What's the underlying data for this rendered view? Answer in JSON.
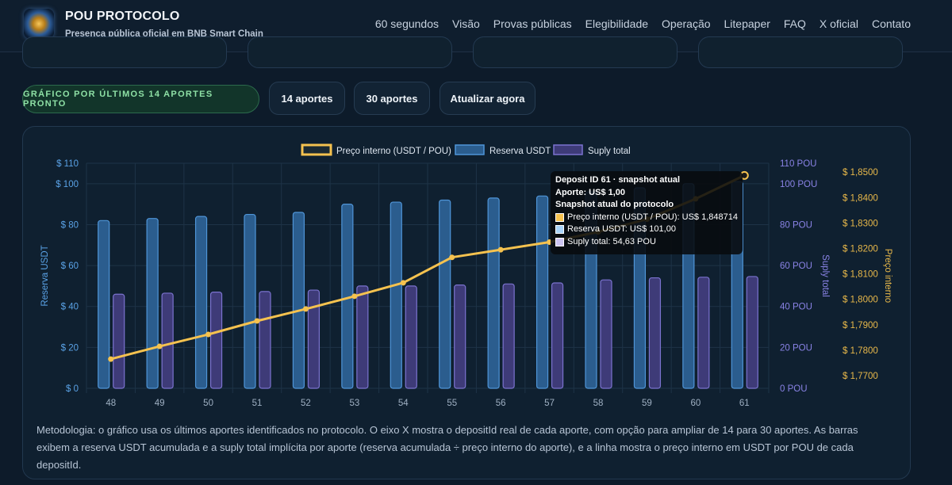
{
  "header": {
    "brand": "POU PROTOCOLO",
    "tagline": "Presença pública oficial em BNB Smart Chain",
    "nav": [
      "60 segundos",
      "Visão",
      "Provas públicas",
      "Elegibilidade",
      "Operação",
      "Litepaper",
      "FAQ",
      "X oficial",
      "Contato"
    ]
  },
  "controls": {
    "status": "GRÁFICO POR ÚLTIMOS 14 APORTES PRONTO",
    "btn_14": "14 aportes",
    "btn_30": "30 aportes",
    "btn_refresh": "Atualizar agora"
  },
  "chart_data": {
    "type": "bar",
    "legend_position": "top",
    "grid": true,
    "categories": [
      "48",
      "49",
      "50",
      "51",
      "52",
      "53",
      "54",
      "55",
      "56",
      "57",
      "58",
      "59",
      "60",
      "61"
    ],
    "series": [
      {
        "name": "Reserva USDT",
        "kind": "bar",
        "axis": "left",
        "color": "#3d7fc2",
        "values": [
          82,
          83,
          84,
          85,
          86,
          90,
          91,
          92,
          93,
          94,
          96,
          98,
          100,
          101
        ]
      },
      {
        "name": "Suply total",
        "kind": "bar",
        "axis": "right-pou",
        "color": "#5f5aa8",
        "values": [
          46,
          46.5,
          47,
          47.3,
          48,
          50,
          50,
          50.5,
          51,
          51.5,
          53,
          54,
          54.3,
          54.63
        ]
      },
      {
        "name": "Preço interno (USDT / POU)",
        "kind": "line",
        "axis": "right-price",
        "color": "#f5c24f",
        "values": [
          1.7765,
          1.7815,
          1.7862,
          1.7915,
          1.7962,
          1.8012,
          1.8065,
          1.8165,
          1.8195,
          1.8225,
          1.8265,
          1.8315,
          1.8395,
          1.848714
        ]
      }
    ],
    "axes": {
      "left": {
        "title": "Reserva USDT",
        "range": [
          0,
          110
        ],
        "ticks": [
          "$ 0",
          "$ 20",
          "$ 40",
          "$ 60",
          "$ 80",
          "$ 100",
          "$ 110"
        ]
      },
      "right_pou": {
        "title": "Suply total",
        "range": [
          0,
          110
        ],
        "ticks": [
          "0 POU",
          "20 POU",
          "40 POU",
          "60 POU",
          "80 POU",
          "100 POU",
          "110 POU"
        ]
      },
      "right_price": {
        "title": "Preço interno",
        "range": [
          1.765,
          1.8535
        ],
        "ticks": [
          "$ 1,7700",
          "$ 1,7800",
          "$ 1,7900",
          "$ 1,8000",
          "$ 1,8100",
          "$ 1,8200",
          "$ 1,8300",
          "$ 1,8400",
          "$ 1,8500"
        ]
      }
    },
    "tooltip": {
      "title": "Deposit ID 61 · snapshot atual",
      "aporte": "Aporte: US$ 1,00",
      "snapshot": "Snapshot atual do protocolo",
      "price": "Preço interno (USDT / POU): US$ 1,848714",
      "reserve": "Reserva USDT: US$ 101,00",
      "supply": "Suply total: 54,63 POU"
    }
  },
  "methodology": "Metodologia: o gráfico usa os últimos aportes identificados no protocolo. O eixo X mostra o depositId real de cada aporte, com opção para ampliar de 14 para 30 aportes. As barras exibem a reserva USDT acumulada e a suply total implícita por aporte (reserva acumulada ÷ preço interno do aporte), e a linha mostra o preço interno em USDT por POU de cada depositId.",
  "colors": {
    "background": "#0d1b2a",
    "accent_green": "#8ee0a5",
    "price_line": "#f5c24f",
    "reserve_bar": "#3d7fc2",
    "supply_bar": "#5f5aa8"
  }
}
